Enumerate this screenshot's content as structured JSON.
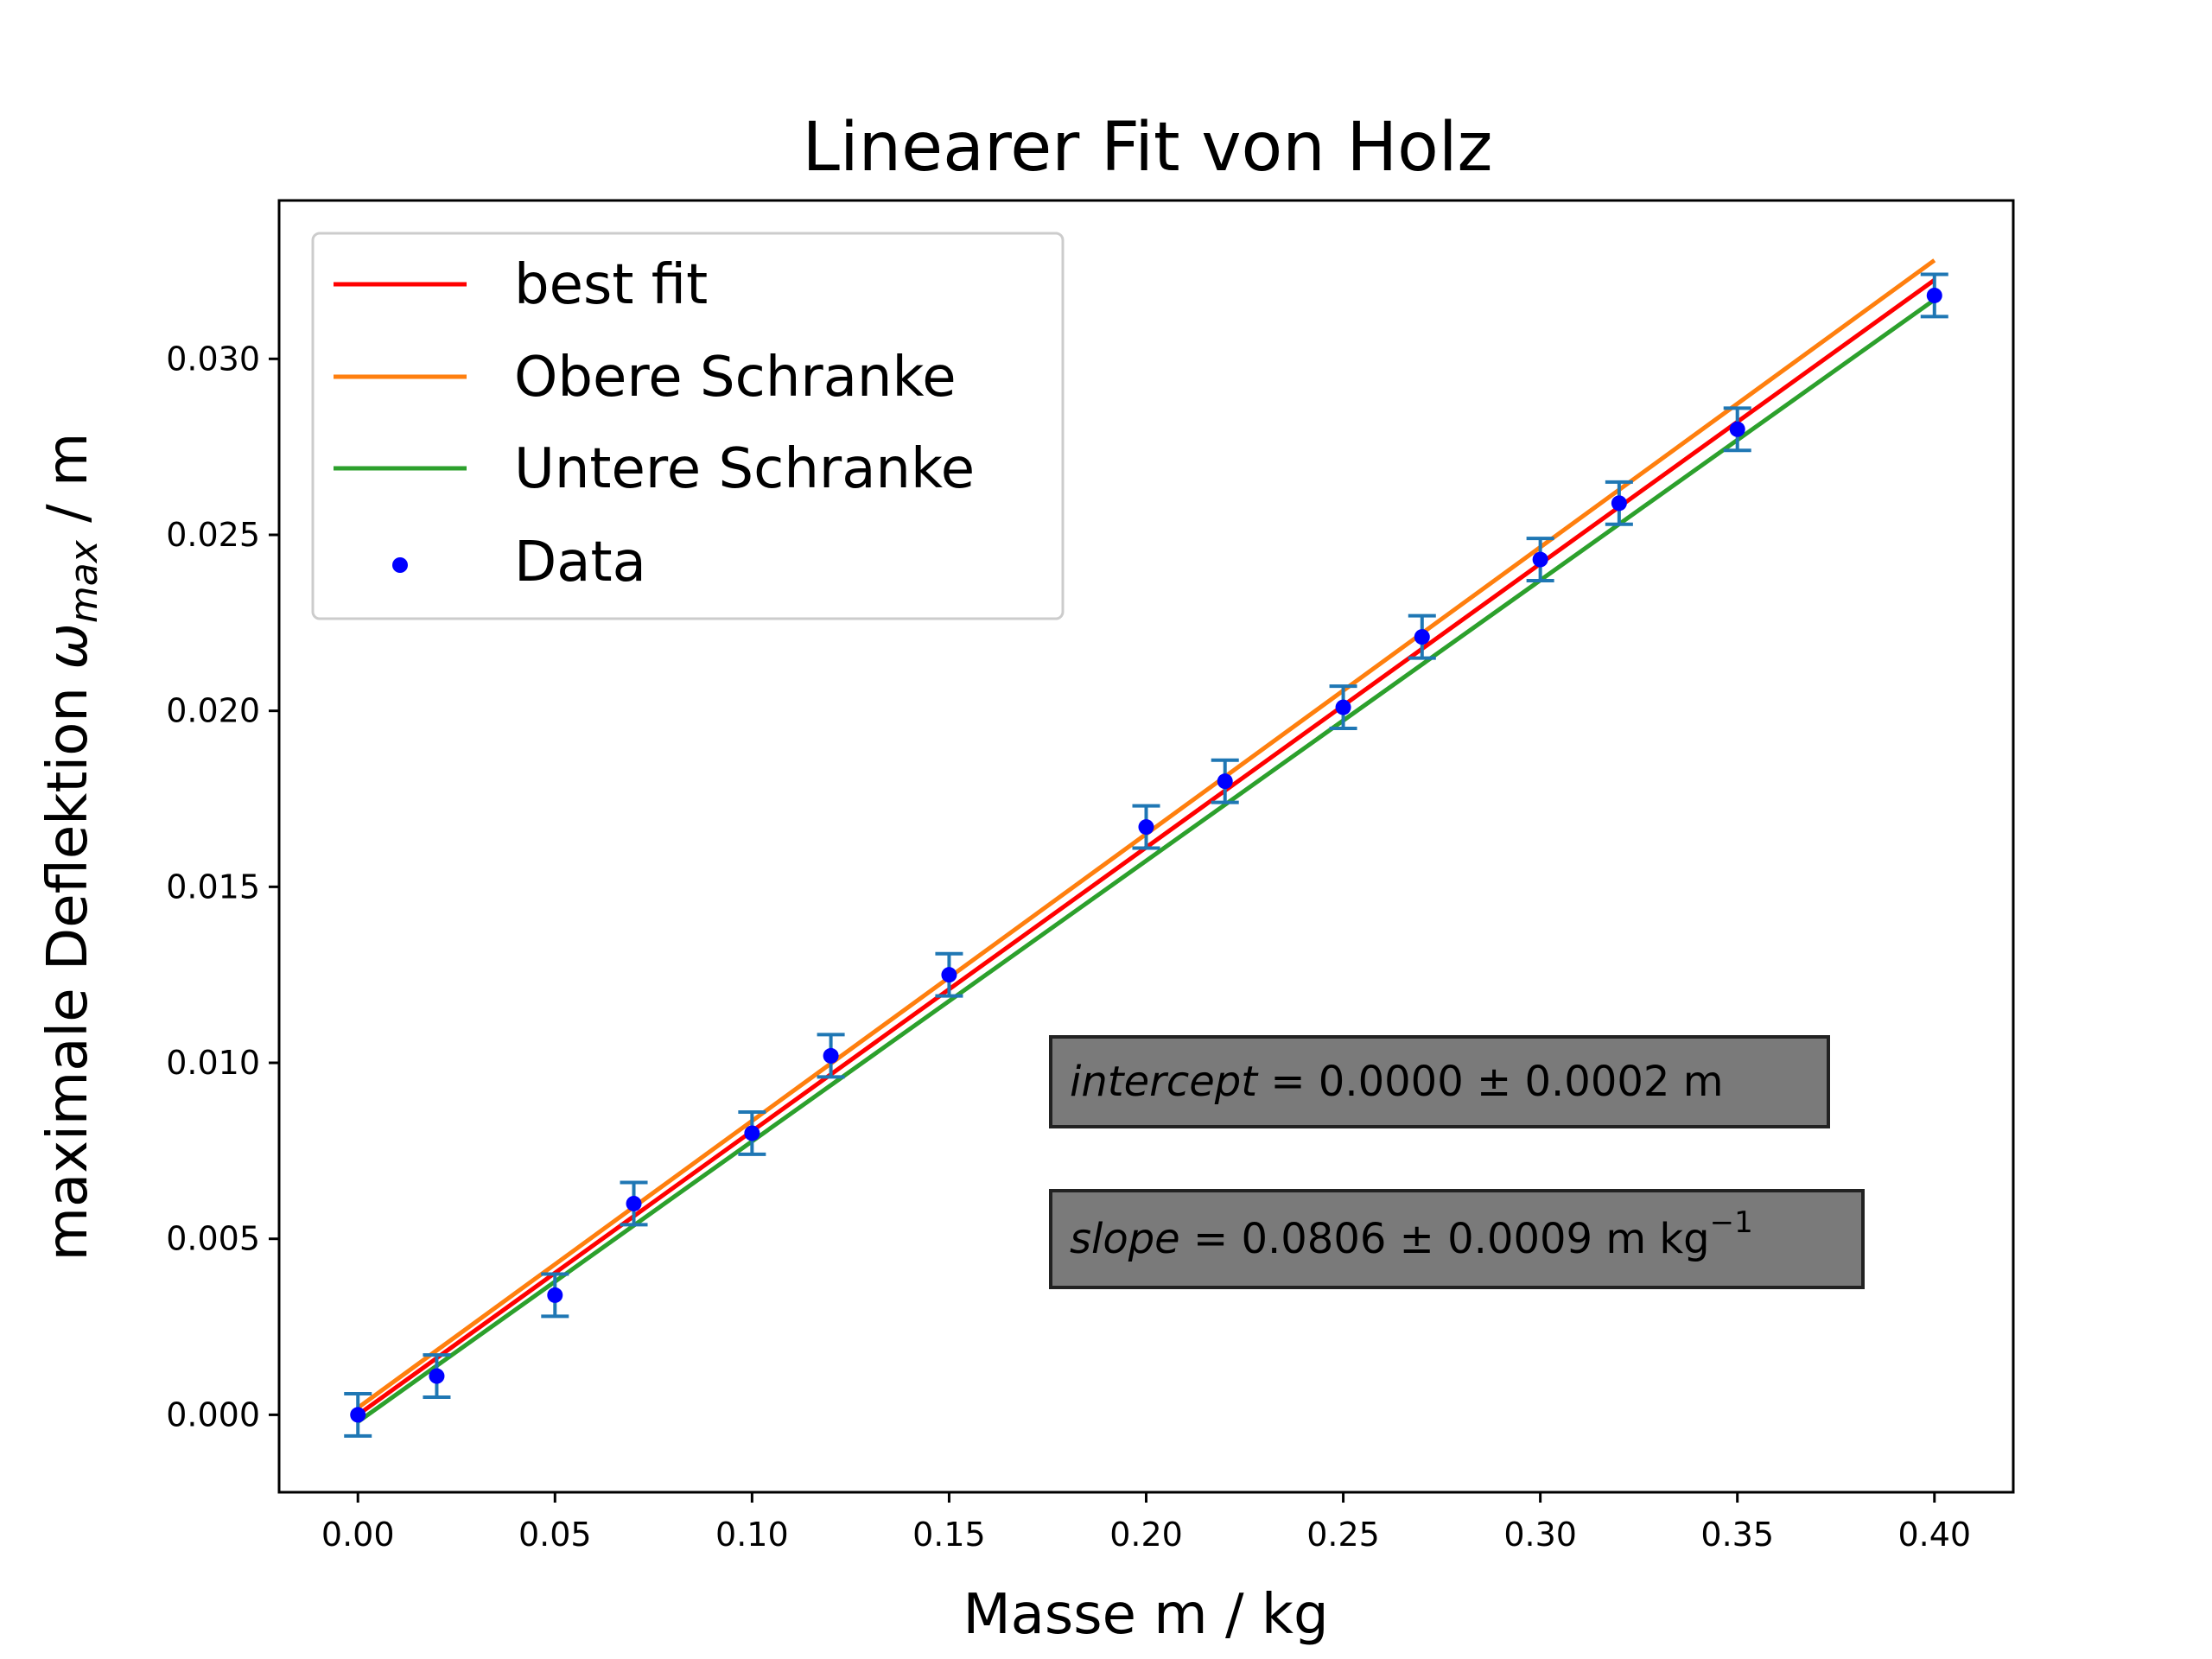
{
  "chart_data": {
    "type": "scatter",
    "title": "Linearer Fit von Holz",
    "xlabel": "Masse m / kg",
    "ylabel_prefix": "maximale Deflektion ",
    "ylabel_symbol": "ω",
    "ylabel_subscript": "max",
    "ylabel_suffix": " / m",
    "xlim": [
      -0.02,
      0.42
    ],
    "ylim": [
      -0.0022,
      0.0345
    ],
    "x_ticks": [
      0.0,
      0.05,
      0.1,
      0.15,
      0.2,
      0.25,
      0.3,
      0.35,
      0.4
    ],
    "x_tick_labels": [
      "0.00",
      "0.05",
      "0.10",
      "0.15",
      "0.20",
      "0.25",
      "0.30",
      "0.35",
      "0.40"
    ],
    "y_ticks": [
      0.0,
      0.005,
      0.01,
      0.015,
      0.02,
      0.025,
      0.03
    ],
    "y_tick_labels": [
      "0.000",
      "0.005",
      "0.010",
      "0.015",
      "0.020",
      "0.025",
      "0.030"
    ],
    "grid": false,
    "legend_position": "upper-left",
    "series": [
      {
        "name": "best fit",
        "kind": "line",
        "color": "#ff0000",
        "x": [
          0.0,
          0.4
        ],
        "y": [
          0.0,
          0.03224
        ]
      },
      {
        "name": "Obere Schranke",
        "kind": "line",
        "color": "#ff7f0e",
        "x": [
          0.0,
          0.4
        ],
        "y": [
          0.0002,
          0.0328
        ]
      },
      {
        "name": "Untere Schranke",
        "kind": "line",
        "color": "#2ca02c",
        "x": [
          0.0,
          0.4
        ],
        "y": [
          -0.0002,
          0.03168
        ]
      },
      {
        "name": "Data",
        "kind": "scatter",
        "color": "#0000ff",
        "errorbar_color": "#1f77b4",
        "x": [
          0.0,
          0.02,
          0.05,
          0.07,
          0.1,
          0.12,
          0.15,
          0.2,
          0.22,
          0.25,
          0.27,
          0.3,
          0.32,
          0.35,
          0.4
        ],
        "y": [
          0.0,
          0.0011,
          0.0034,
          0.006,
          0.008,
          0.0102,
          0.0125,
          0.0167,
          0.018,
          0.0201,
          0.0221,
          0.0243,
          0.0259,
          0.028,
          0.0318
        ],
        "yerr": 0.0006
      }
    ],
    "annotations": [
      {
        "name": "intercept",
        "italic": "intercept",
        "text": " = 0.0000 ± 0.0002 m",
        "box_color": "#7a7a7a"
      },
      {
        "name": "slope",
        "italic": "slope",
        "text": " = 0.0806 ± 0.0009 m kg",
        "sup": "−1",
        "box_color": "#7a7a7a"
      }
    ]
  }
}
